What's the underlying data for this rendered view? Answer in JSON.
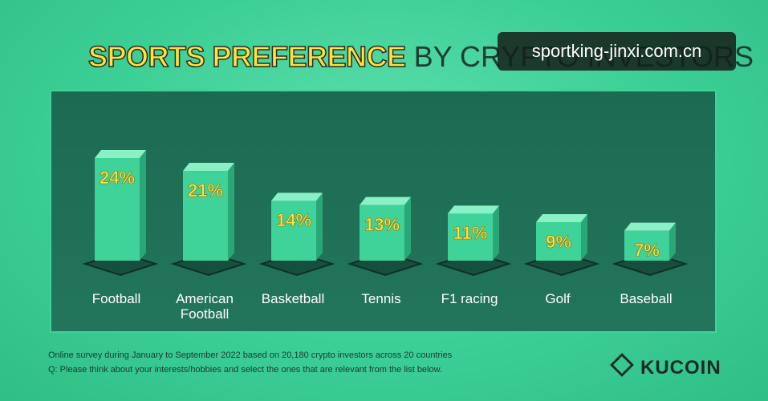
{
  "chart_data": {
    "type": "bar",
    "title_highlight": "SPORTS PREFERENCE",
    "title": "BY CRYPTO INVESTORS",
    "categories": [
      "Football",
      "American Football",
      "Basketball",
      "Tennis",
      "F1 racing",
      "Golf",
      "Baseball"
    ],
    "values": [
      24,
      21,
      14,
      13,
      11,
      9,
      7
    ],
    "value_labels": [
      "24%",
      "21%",
      "14%",
      "13%",
      "11%",
      "9%",
      "7%"
    ],
    "color": "#3fd39a",
    "notes": [
      "Online survey during January to September 2022 based on 20,180 crypto investors across 20 countries",
      "Q: Please think about your interests/hobbies and select the ones that are relevant from the list below."
    ],
    "brand": "KUCOIN",
    "watermark": "sportking-jinxi.com.cn"
  }
}
